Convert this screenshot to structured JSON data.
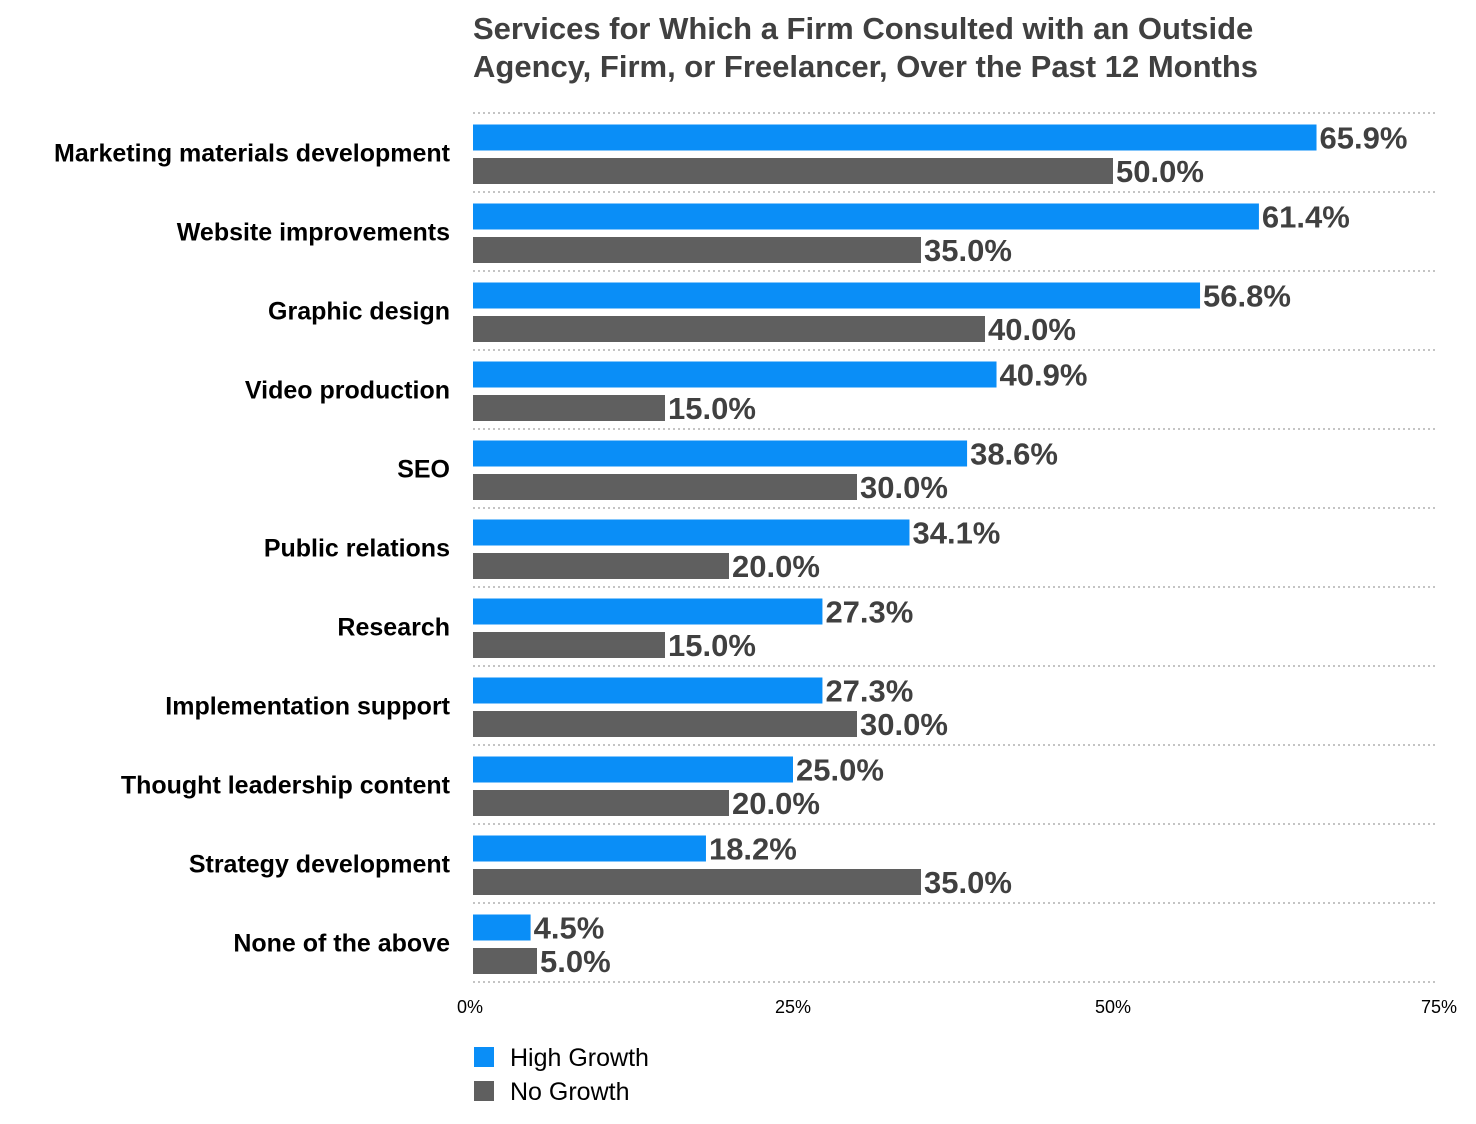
{
  "chart_data": {
    "type": "bar",
    "orientation": "horizontal",
    "title": "Services for Which a Firm Consulted with an Outside Agency, Firm, or Freelancer, Over the Past 12 Months",
    "title_lines": [
      "Services for Which a Firm Consulted with an Outside",
      "Agency, Firm, or Freelancer, Over the Past 12 Months"
    ],
    "categories": [
      "Marketing materials development",
      "Website improvements",
      "Graphic design",
      "Video production",
      "SEO",
      "Public relations",
      "Research",
      "Implementation support",
      "Thought leadership content",
      "Strategy development",
      "None of the above"
    ],
    "series": [
      {
        "name": "High Growth",
        "color": "#0A8EF7",
        "values": [
          65.9,
          61.4,
          56.8,
          40.9,
          38.6,
          34.1,
          27.3,
          27.3,
          25.0,
          18.2,
          4.5
        ],
        "labels": [
          "65.9%",
          "61.4%",
          "56.8%",
          "40.9%",
          "38.6%",
          "34.1%",
          "27.3%",
          "27.3%",
          "25.0%",
          "18.2%",
          "4.5%"
        ]
      },
      {
        "name": "No Growth",
        "color": "#5F5F5F",
        "values": [
          50.0,
          35.0,
          40.0,
          15.0,
          30.0,
          20.0,
          15.0,
          30.0,
          20.0,
          35.0,
          5.0
        ],
        "labels": [
          "50.0%",
          "35.0%",
          "40.0%",
          "15.0%",
          "30.0%",
          "20.0%",
          "15.0%",
          "30.0%",
          "20.0%",
          "35.0%",
          "5.0%"
        ]
      }
    ],
    "xlabel": "",
    "ylabel": "",
    "xlim": [
      0,
      75
    ],
    "xticks": [
      0,
      25,
      50,
      75
    ],
    "xtick_labels": [
      "0%",
      "25%",
      "50%",
      "75%"
    ],
    "grid": "horizontal dotted separators between categories",
    "legend_position": "bottom-left"
  }
}
